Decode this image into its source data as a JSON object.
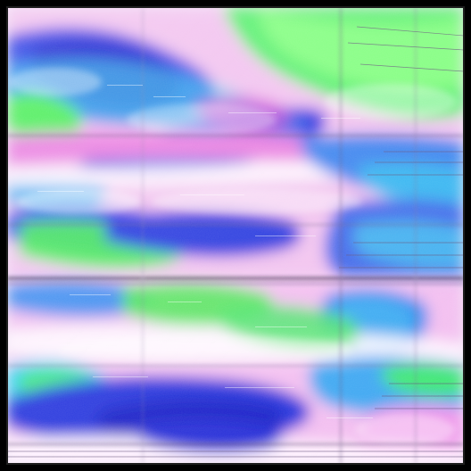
{
  "image": {
    "kind": "abstract",
    "palette": {
      "frame": "#000000",
      "base": "#f3e6f6",
      "blue": "#2f42e8",
      "deep_blue": "#1b22c9",
      "sky": "#3fa4f2",
      "cyan": "#34e2ec",
      "green": "#42f05a",
      "lime": "#7dff6a",
      "pink": "#f28ae6",
      "magenta": "#d24ad3",
      "white": "#ffffff",
      "line": "#6a4b84",
      "dark_line": "#2a1d3b"
    },
    "layout_bands": [
      "upper",
      "lower"
    ]
  }
}
